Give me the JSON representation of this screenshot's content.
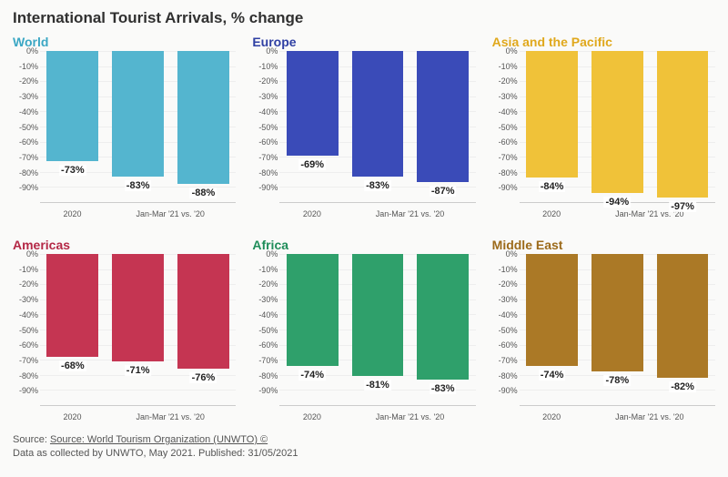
{
  "title": "International Tourist Arrivals, % change",
  "background_color": "#fafaf9",
  "title_color": "#303030",
  "title_fontsize": 17,
  "panel_title_fontsize": 14,
  "y_axis": {
    "min": -100,
    "max": 0,
    "step": 10,
    "labels": [
      "0%",
      "-10%",
      "-20%",
      "-30%",
      "-40%",
      "-50%",
      "-60%",
      "-70%",
      "-80%",
      "-90%"
    ],
    "label_fontsize": 9,
    "grid_color": "#eeeeee"
  },
  "x_axis": {
    "label1": "2020",
    "label2": "Jan-Mar '21 vs. '20",
    "label_fontsize": 9
  },
  "value_label_fontsize": 11,
  "panels": [
    {
      "title": "World",
      "title_color": "#3ba7c4",
      "bar_color": "#54b5cf",
      "values": [
        -73,
        -83,
        -88
      ],
      "labels": [
        "-73%",
        "-83%",
        "-88%"
      ]
    },
    {
      "title": "Europe",
      "title_color": "#2e3fa3",
      "bar_color": "#3a4bb8",
      "values": [
        -69,
        -83,
        -87
      ],
      "labels": [
        "-69%",
        "-83%",
        "-87%"
      ]
    },
    {
      "title": "Asia and the Pacific",
      "title_color": "#e0a81c",
      "bar_color": "#f0c239",
      "values": [
        -84,
        -94,
        -97
      ],
      "labels": [
        "-84%",
        "-94%",
        "-97%"
      ]
    },
    {
      "title": "Americas",
      "title_color": "#b42846",
      "bar_color": "#c53552",
      "values": [
        -68,
        -71,
        -76
      ],
      "labels": [
        "-68%",
        "-71%",
        "-76%"
      ]
    },
    {
      "title": "Africa",
      "title_color": "#1f8d5a",
      "bar_color": "#2fa06b",
      "values": [
        -74,
        -81,
        -83
      ],
      "labels": [
        "-74%",
        "-81%",
        "-83%"
      ]
    },
    {
      "title": "Middle East",
      "title_color": "#9c6a1a",
      "bar_color": "#ab7926",
      "values": [
        -74,
        -78,
        -82
      ],
      "labels": [
        "-74%",
        "-78%",
        "-82%"
      ]
    }
  ],
  "footer": {
    "line1_prefix": "Source: ",
    "line1_link": "Source: World Tourism Organization (UNWTO) ©",
    "line2": "Data as collected by UNWTO, May 2021. Published: 31/05/2021"
  }
}
